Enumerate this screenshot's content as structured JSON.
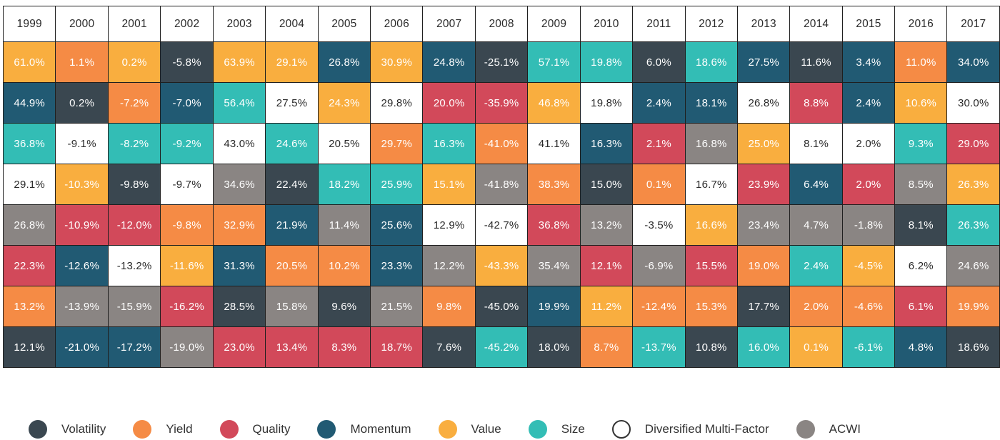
{
  "chart_data": {
    "type": "table",
    "years": [
      "1999",
      "2000",
      "2001",
      "2002",
      "2003",
      "2004",
      "2005",
      "2006",
      "2007",
      "2008",
      "2009",
      "2010",
      "2011",
      "2012",
      "2013",
      "2014",
      "2015",
      "2016",
      "2017"
    ],
    "factors": {
      "Volatility": "#3a4750",
      "Yield": "#f58b45",
      "Quality": "#d2495a",
      "Momentum": "#215a73",
      "Value": "#f9ae3f",
      "Size": "#33bdb5",
      "Diversified Multi-Factor": "#ffffff",
      "ACWI": "#8a8583"
    },
    "ranks": [
      [
        [
          "61.0%",
          "Value"
        ],
        [
          "1.1%",
          "Yield"
        ],
        [
          "0.2%",
          "Value"
        ],
        [
          "-5.8%",
          "Volatility"
        ],
        [
          "63.9%",
          "Value"
        ],
        [
          "29.1%",
          "Value"
        ],
        [
          "26.8%",
          "Momentum"
        ],
        [
          "30.9%",
          "Value"
        ],
        [
          "24.8%",
          "Momentum"
        ],
        [
          "-25.1%",
          "Volatility"
        ],
        [
          "57.1%",
          "Size"
        ],
        [
          "19.8%",
          "Size"
        ],
        [
          "6.0%",
          "Volatility"
        ],
        [
          "18.6%",
          "Size"
        ],
        [
          "27.5%",
          "Momentum"
        ],
        [
          "11.6%",
          "Volatility"
        ],
        [
          "3.4%",
          "Momentum"
        ],
        [
          "11.0%",
          "Yield"
        ],
        [
          "34.0%",
          "Momentum"
        ]
      ],
      [
        [
          "44.9%",
          "Momentum"
        ],
        [
          "0.2%",
          "Volatility"
        ],
        [
          "-7.2%",
          "Yield"
        ],
        [
          "-7.0%",
          "Momentum"
        ],
        [
          "56.4%",
          "Size"
        ],
        [
          "27.5%",
          "Diversified Multi-Factor"
        ],
        [
          "24.3%",
          "Value"
        ],
        [
          "29.8%",
          "Diversified Multi-Factor"
        ],
        [
          "20.0%",
          "Quality"
        ],
        [
          "-35.9%",
          "Quality"
        ],
        [
          "46.8%",
          "Value"
        ],
        [
          "19.8%",
          "Diversified Multi-Factor"
        ],
        [
          "2.4%",
          "Momentum"
        ],
        [
          "18.1%",
          "Momentum"
        ],
        [
          "26.8%",
          "Diversified Multi-Factor"
        ],
        [
          "8.8%",
          "Quality"
        ],
        [
          "2.4%",
          "Momentum"
        ],
        [
          "10.6%",
          "Value"
        ],
        [
          "30.0%",
          "Diversified Multi-Factor"
        ]
      ],
      [
        [
          "36.8%",
          "Size"
        ],
        [
          "-9.1%",
          "Diversified Multi-Factor"
        ],
        [
          "-8.2%",
          "Size"
        ],
        [
          "-9.2%",
          "Size"
        ],
        [
          "43.0%",
          "Diversified Multi-Factor"
        ],
        [
          "24.6%",
          "Size"
        ],
        [
          "20.5%",
          "Diversified Multi-Factor"
        ],
        [
          "29.7%",
          "Yield"
        ],
        [
          "16.3%",
          "Size"
        ],
        [
          "-41.0%",
          "Yield"
        ],
        [
          "41.1%",
          "Diversified Multi-Factor"
        ],
        [
          "16.3%",
          "Momentum"
        ],
        [
          "2.1%",
          "Quality"
        ],
        [
          "16.8%",
          "ACWI"
        ],
        [
          "25.0%",
          "Value"
        ],
        [
          "8.1%",
          "Diversified Multi-Factor"
        ],
        [
          "2.0%",
          "Diversified Multi-Factor"
        ],
        [
          "9.3%",
          "Size"
        ],
        [
          "29.0%",
          "Quality"
        ]
      ],
      [
        [
          "29.1%",
          "Diversified Multi-Factor"
        ],
        [
          "-10.3%",
          "Value"
        ],
        [
          "-9.8%",
          "Volatility"
        ],
        [
          "-9.7%",
          "Diversified Multi-Factor"
        ],
        [
          "34.6%",
          "ACWI"
        ],
        [
          "22.4%",
          "Volatility"
        ],
        [
          "18.2%",
          "Size"
        ],
        [
          "25.9%",
          "Size"
        ],
        [
          "15.1%",
          "Value"
        ],
        [
          "-41.8%",
          "ACWI"
        ],
        [
          "38.3%",
          "Yield"
        ],
        [
          "15.0%",
          "Volatility"
        ],
        [
          "0.1%",
          "Yield"
        ],
        [
          "16.7%",
          "Diversified Multi-Factor"
        ],
        [
          "23.9%",
          "Quality"
        ],
        [
          "6.4%",
          "Momentum"
        ],
        [
          "2.0%",
          "Quality"
        ],
        [
          "8.5%",
          "ACWI"
        ],
        [
          "26.3%",
          "Value"
        ]
      ],
      [
        [
          "26.8%",
          "ACWI"
        ],
        [
          "-10.9%",
          "Quality"
        ],
        [
          "-12.0%",
          "Quality"
        ],
        [
          "-9.8%",
          "Yield"
        ],
        [
          "32.9%",
          "Yield"
        ],
        [
          "21.9%",
          "Momentum"
        ],
        [
          "11.4%",
          "ACWI"
        ],
        [
          "25.6%",
          "Momentum"
        ],
        [
          "12.9%",
          "Diversified Multi-Factor"
        ],
        [
          "-42.7%",
          "Diversified Multi-Factor"
        ],
        [
          "36.8%",
          "Quality"
        ],
        [
          "13.2%",
          "ACWI"
        ],
        [
          "-3.5%",
          "Diversified Multi-Factor"
        ],
        [
          "16.6%",
          "Value"
        ],
        [
          "23.4%",
          "ACWI"
        ],
        [
          "4.7%",
          "ACWI"
        ],
        [
          "-1.8%",
          "ACWI"
        ],
        [
          "8.1%",
          "Volatility"
        ],
        [
          "26.3%",
          "Size"
        ]
      ],
      [
        [
          "22.3%",
          "Quality"
        ],
        [
          "-12.6%",
          "Momentum"
        ],
        [
          "-13.2%",
          "Diversified Multi-Factor"
        ],
        [
          "-11.6%",
          "Value"
        ],
        [
          "31.3%",
          "Momentum"
        ],
        [
          "20.5%",
          "Yield"
        ],
        [
          "10.2%",
          "Yield"
        ],
        [
          "23.3%",
          "Momentum"
        ],
        [
          "12.2%",
          "ACWI"
        ],
        [
          "-43.3%",
          "Value"
        ],
        [
          "35.4%",
          "ACWI"
        ],
        [
          "12.1%",
          "Quality"
        ],
        [
          "-6.9%",
          "ACWI"
        ],
        [
          "15.5%",
          "Quality"
        ],
        [
          "19.0%",
          "Yield"
        ],
        [
          "2.4%",
          "Size"
        ],
        [
          "-4.5%",
          "Value"
        ],
        [
          "6.2%",
          "Diversified Multi-Factor"
        ],
        [
          "24.6%",
          "ACWI"
        ]
      ],
      [
        [
          "13.2%",
          "Yield"
        ],
        [
          "-13.9%",
          "ACWI"
        ],
        [
          "-15.9%",
          "ACWI"
        ],
        [
          "-16.2%",
          "Quality"
        ],
        [
          "28.5%",
          "Volatility"
        ],
        [
          "15.8%",
          "ACWI"
        ],
        [
          "9.6%",
          "Volatility"
        ],
        [
          "21.5%",
          "ACWI"
        ],
        [
          "9.8%",
          "Yield"
        ],
        [
          "-45.0%",
          "Volatility"
        ],
        [
          "19.9%",
          "Momentum"
        ],
        [
          "11.2%",
          "Value"
        ],
        [
          "-12.4%",
          "Yield"
        ],
        [
          "15.3%",
          "Yield"
        ],
        [
          "17.7%",
          "Volatility"
        ],
        [
          "2.0%",
          "Yield"
        ],
        [
          "-4.6%",
          "Yield"
        ],
        [
          "6.1%",
          "Quality"
        ],
        [
          "19.9%",
          "Yield"
        ]
      ],
      [
        [
          "12.1%",
          "Volatility"
        ],
        [
          "-21.0%",
          "Momentum"
        ],
        [
          "-17.2%",
          "Momentum"
        ],
        [
          "-19.0%",
          "ACWI"
        ],
        [
          "23.0%",
          "Quality"
        ],
        [
          "13.4%",
          "Quality"
        ],
        [
          "8.3%",
          "Quality"
        ],
        [
          "18.7%",
          "Quality"
        ],
        [
          "7.6%",
          "Volatility"
        ],
        [
          "-45.2%",
          "Size"
        ],
        [
          "18.0%",
          "Volatility"
        ],
        [
          "8.7%",
          "Yield"
        ],
        [
          "-13.7%",
          "Size"
        ],
        [
          "10.8%",
          "Volatility"
        ],
        [
          "16.0%",
          "Size"
        ],
        [
          "0.1%",
          "Value"
        ],
        [
          "-6.1%",
          "Size"
        ],
        [
          "4.8%",
          "Momentum"
        ],
        [
          "18.6%",
          "Volatility"
        ]
      ]
    ],
    "legend": [
      "Volatility",
      "Yield",
      "Quality",
      "Momentum",
      "Value",
      "Size",
      "Diversified Multi-Factor",
      "ACWI"
    ]
  }
}
